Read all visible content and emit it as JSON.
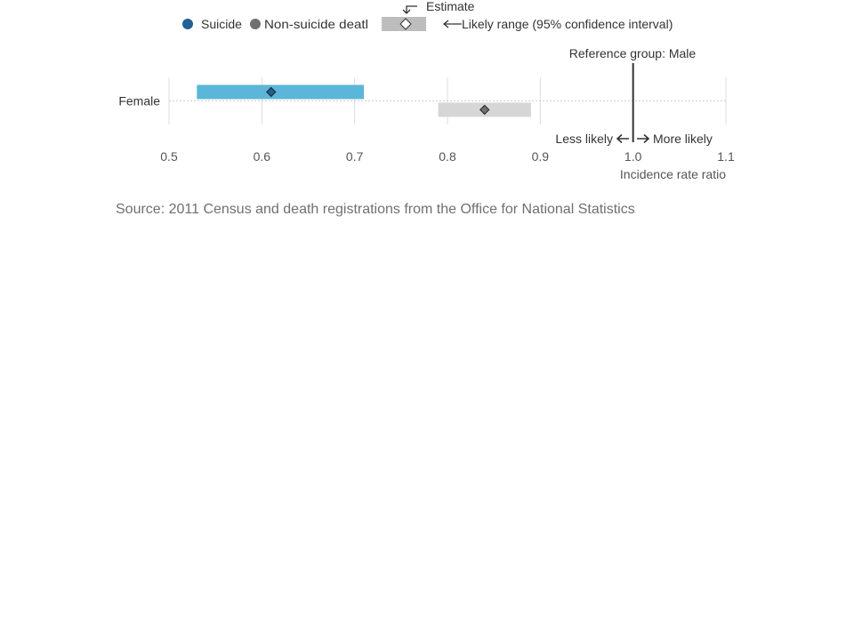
{
  "legend": {
    "items": [
      {
        "label": "Suicide",
        "color": "#206095"
      },
      {
        "label": "Non-suicide deatl",
        "color": "#707070"
      }
    ],
    "estimate_label": "Estimate",
    "range_label": "Likely range (95% confidence interval)"
  },
  "annotations": {
    "reference": "Reference group: Male",
    "less": "Less likely",
    "more": "More likely"
  },
  "source": "Source: 2011 Census and death registrations from the Office for National Statistics",
  "chart_data": {
    "type": "range-plot",
    "categories": [
      "Female"
    ],
    "xlabel": "Incidence rate ratio",
    "xlim": [
      0.5,
      1.1
    ],
    "xticks": [
      "0.5",
      "0.6",
      "0.7",
      "0.8",
      "0.9",
      "1.0",
      "1.1"
    ],
    "reference_value": 1.0,
    "grid": true,
    "series": [
      {
        "name": "Suicide",
        "bar_color": "#5bb6d9",
        "marker_color": "#206095",
        "points": [
          {
            "category": "Female",
            "estimate": 0.61,
            "lower": 0.53,
            "upper": 0.71
          }
        ]
      },
      {
        "name": "Non-suicide deatl",
        "bar_color": "#d6d6d6",
        "marker_color": "#707070",
        "points": [
          {
            "category": "Female",
            "estimate": 0.84,
            "lower": 0.79,
            "upper": 0.89
          }
        ]
      }
    ]
  }
}
